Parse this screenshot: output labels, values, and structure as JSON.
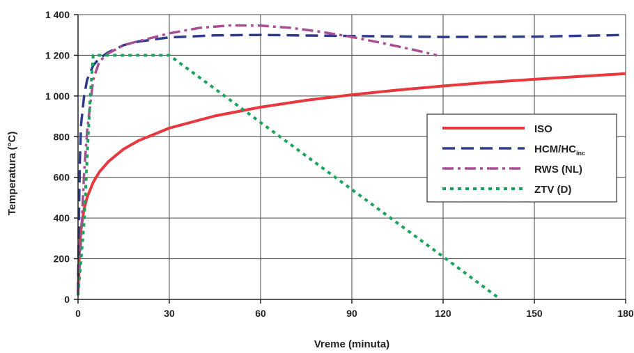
{
  "chart_data": {
    "type": "line",
    "title": "",
    "xlabel": "Vreme (minuta)",
    "ylabel": "Temperatura (°C)",
    "xlim": [
      0,
      180
    ],
    "ylim": [
      0,
      1400
    ],
    "xticks": [
      0,
      30,
      60,
      90,
      120,
      150,
      180
    ],
    "yticks": [
      0,
      200,
      400,
      600,
      800,
      1000,
      1200,
      1400
    ],
    "xtick_labels": [
      "0",
      "30",
      "60",
      "90",
      "120",
      "150",
      "180"
    ],
    "ytick_labels": [
      "0",
      "200",
      "400",
      "600",
      "800",
      "1 000",
      "1 200",
      "1 400"
    ],
    "grid": true,
    "legend_position": "right",
    "series": [
      {
        "name": "ISO",
        "label_main": "ISO",
        "label_sub": "",
        "color": "#e8383d",
        "style": "solid",
        "x": [
          0,
          0.5,
          1,
          2,
          3,
          5,
          7,
          10,
          15,
          20,
          30,
          45,
          60,
          75,
          90,
          105,
          120,
          135,
          150,
          165,
          180
        ],
        "y": [
          20,
          261,
          349,
          445,
          502,
          576,
          626,
          678,
          739,
          781,
          842,
          902,
          945,
          979,
          1006,
          1029,
          1049,
          1067,
          1082,
          1096,
          1110
        ]
      },
      {
        "name": "HCM/HCinc",
        "label_main": "HCM/HC",
        "label_sub": "inc",
        "color": "#2e3a8c",
        "style": "dashed",
        "x": [
          0,
          0.3,
          0.6,
          1,
          2,
          3,
          5,
          7,
          10,
          15,
          20,
          30,
          45,
          60,
          90,
          120,
          150,
          180
        ],
        "y": [
          20,
          400,
          680,
          860,
          1000,
          1080,
          1150,
          1185,
          1215,
          1250,
          1268,
          1288,
          1298,
          1300,
          1295,
          1290,
          1292,
          1300
        ]
      },
      {
        "name": "RWS (NL)",
        "label_main": "RWS (NL)",
        "label_sub": "",
        "color": "#a84f94",
        "style": "dashdot",
        "x": [
          0,
          1,
          2,
          3,
          5,
          7,
          10,
          15,
          20,
          30,
          40,
          50,
          60,
          70,
          80,
          90,
          100,
          110,
          118
        ],
        "y": [
          20,
          300,
          620,
          830,
          1080,
          1170,
          1210,
          1250,
          1270,
          1308,
          1335,
          1347,
          1346,
          1335,
          1315,
          1290,
          1260,
          1228,
          1200
        ]
      },
      {
        "name": "ZTV (D)",
        "label_main": "ZTV (D)",
        "label_sub": "",
        "color": "#1aa35b",
        "style": "dotted",
        "x": [
          0,
          2,
          3,
          4,
          5,
          10,
          20,
          30,
          60,
          90,
          120,
          138
        ],
        "y": [
          20,
          380,
          700,
          1000,
          1200,
          1200,
          1200,
          1200,
          870,
          540,
          210,
          10
        ]
      }
    ]
  }
}
